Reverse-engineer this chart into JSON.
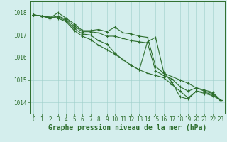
{
  "x": [
    0,
    1,
    2,
    3,
    4,
    5,
    6,
    7,
    8,
    9,
    10,
    11,
    12,
    13,
    14,
    15,
    16,
    17,
    18,
    19,
    20,
    21,
    22,
    23
  ],
  "series": [
    [
      1017.9,
      1017.85,
      1017.75,
      1018.0,
      1017.75,
      1017.5,
      1017.2,
      1017.2,
      1017.25,
      1017.15,
      1017.35,
      1017.1,
      1017.05,
      1016.95,
      1016.9,
      1015.6,
      1015.3,
      1015.15,
      1015.0,
      1014.85,
      1014.65,
      1014.55,
      1014.45,
      1014.1
    ],
    [
      1017.9,
      1017.85,
      1017.75,
      1017.85,
      1017.7,
      1017.4,
      1017.15,
      1017.15,
      1017.1,
      1016.95,
      1016.95,
      1016.85,
      1016.75,
      1016.7,
      1016.65,
      1015.4,
      1015.2,
      1015.05,
      1014.7,
      1014.5,
      1014.65,
      1014.5,
      1014.4,
      1014.1
    ],
    [
      1017.9,
      1017.85,
      1017.8,
      1017.8,
      1017.65,
      1017.3,
      1017.05,
      1017.0,
      1016.75,
      1016.6,
      1016.2,
      1015.9,
      1015.65,
      1015.45,
      1015.3,
      1015.2,
      1015.1,
      1014.8,
      1014.5,
      1014.2,
      1014.5,
      1014.45,
      1014.35,
      1014.1
    ],
    [
      1017.9,
      1017.85,
      1017.8,
      1017.75,
      1017.6,
      1017.2,
      1016.95,
      1016.8,
      1016.55,
      1016.35,
      1016.15,
      1015.9,
      1015.65,
      1015.45,
      1016.7,
      1016.9,
      1015.35,
      1014.9,
      1014.25,
      1014.15,
      1014.5,
      1014.4,
      1014.3,
      1014.1
    ]
  ],
  "line_color": "#2d6e2d",
  "marker": "+",
  "marker_size": 3.5,
  "line_width": 0.8,
  "bg_color": "#d4eeed",
  "grid_color": "#9ecfca",
  "axis_color": "#2d6e2d",
  "text_color": "#2d6e2d",
  "ylim": [
    1013.5,
    1018.5
  ],
  "xlim": [
    -0.5,
    23.5
  ],
  "yticks": [
    1014,
    1015,
    1016,
    1017,
    1018
  ],
  "xtick_labels": [
    "0",
    "1",
    "2",
    "3",
    "4",
    "5",
    "6",
    "7",
    "8",
    "9",
    "10",
    "11",
    "12",
    "13",
    "14",
    "15",
    "16",
    "17",
    "18",
    "19",
    "20",
    "21",
    "22",
    "23"
  ],
  "xlabel": "Graphe pression niveau de la mer (hPa)",
  "tick_fontsize": 5.5,
  "xlabel_fontsize": 7.0
}
